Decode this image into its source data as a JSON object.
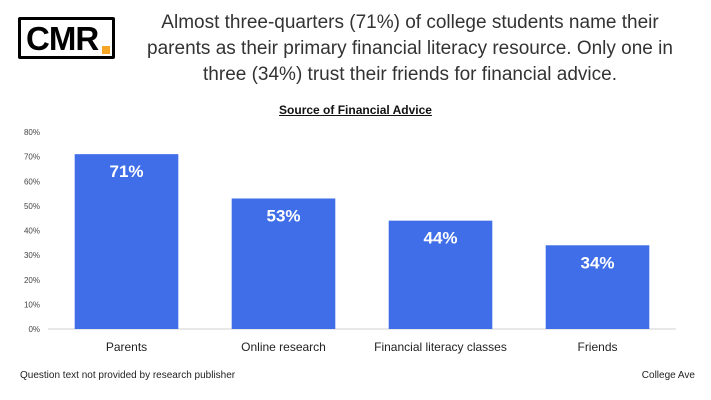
{
  "logo": {
    "text": "CMR",
    "accent_color": "#f5a623"
  },
  "headline": "Almost three-quarters (71%) of college students name their parents as their primary financial literacy resource. Only one in three (34%) trust their friends for financial advice.",
  "footnote": "Question text not provided by research publisher",
  "source": "College Ave",
  "chart_data": {
    "type": "bar",
    "title": "Source of Financial Advice",
    "categories": [
      "Parents",
      "Online research",
      "Financial literacy classes",
      "Friends"
    ],
    "values": [
      71,
      53,
      44,
      34
    ],
    "value_labels": [
      "71%",
      "53%",
      "44%",
      "34%"
    ],
    "ylim": [
      0,
      80
    ],
    "yticks": [
      0,
      10,
      20,
      30,
      40,
      50,
      60,
      70,
      80
    ],
    "ytick_labels": [
      "0%",
      "10%",
      "20%",
      "30%",
      "40%",
      "50%",
      "60%",
      "70%",
      "80%"
    ],
    "grid": false,
    "bar_color": "#3f6ee8",
    "xlabel": "",
    "ylabel": ""
  }
}
